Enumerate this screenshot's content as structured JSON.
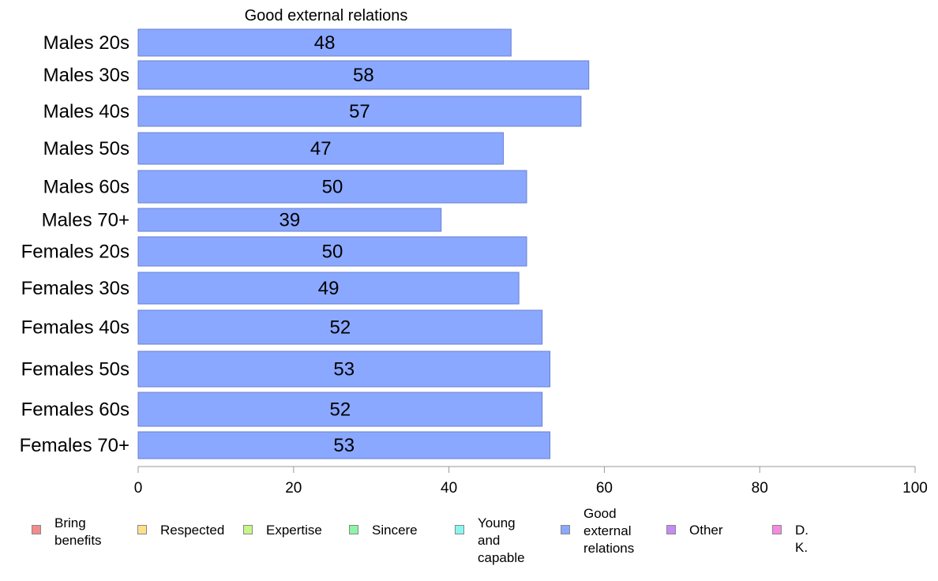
{
  "chart_data": {
    "type": "bar",
    "orientation": "horizontal",
    "title": "Good external relations",
    "categories": [
      "Males 20s",
      "Males 30s",
      "Males 40s",
      "Males 50s",
      "Males 60s",
      "Males 70+",
      "Females 20s",
      "Females 30s",
      "Females 40s",
      "Females 50s",
      "Females 60s",
      "Females 70+"
    ],
    "series": [
      {
        "name": "Good external relations",
        "color": "#8aa8ff",
        "values": [
          48,
          58,
          57,
          47,
          50,
          39,
          50,
          49,
          52,
          53,
          52,
          53
        ]
      }
    ],
    "xlim": [
      0,
      100
    ],
    "xticks": [
      0,
      20,
      40,
      60,
      80,
      100
    ],
    "grid": false,
    "legend_placement": "bottom"
  },
  "legend": [
    {
      "label": "Bring\nbenefits",
      "color": "#f28b8b"
    },
    {
      "label": "Respected",
      "color": "#ffe08a"
    },
    {
      "label": "Expertise",
      "color": "#c8f58a"
    },
    {
      "label": "Sincere",
      "color": "#8ef5a8"
    },
    {
      "label": "Young and\ncapable",
      "color": "#8af5f0"
    },
    {
      "label": "Good\nexternal\nrelations",
      "color": "#8aa8ff"
    },
    {
      "label": "Other",
      "color": "#c58af5"
    },
    {
      "label": "D. K.",
      "color": "#f58ae0"
    }
  ]
}
